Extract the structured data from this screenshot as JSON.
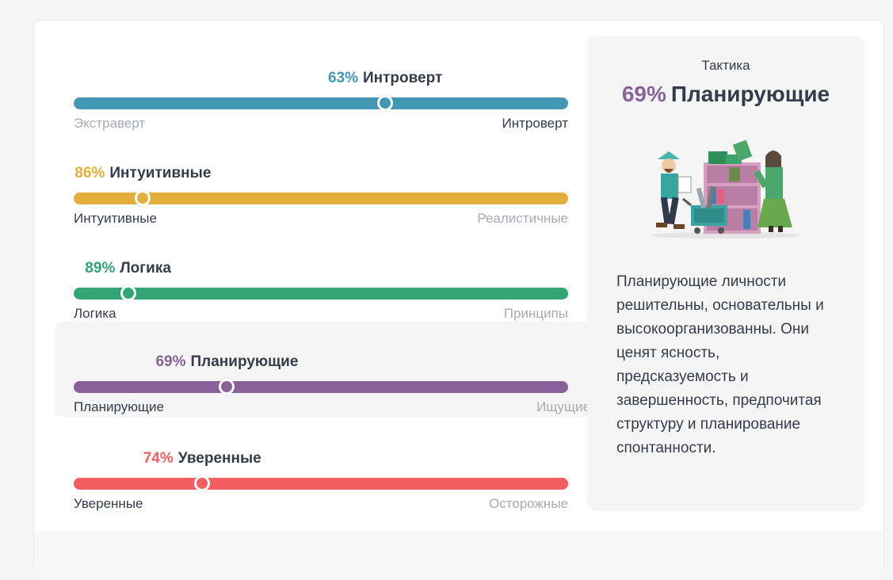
{
  "traits": [
    {
      "percent": "63%",
      "name": "Интроверт",
      "left_label": "Экстраверт",
      "right_label": "Интроверт",
      "value": 0.63,
      "selected_side": "right",
      "color": "#4298b4"
    },
    {
      "percent": "86%",
      "name": "Интуитивные",
      "left_label": "Интуитивные",
      "right_label": "Реалистичные",
      "value": 0.86,
      "selected_side": "left",
      "color": "#e4ae3a"
    },
    {
      "percent": "89%",
      "name": "Логика",
      "left_label": "Логика",
      "right_label": "Принципы",
      "value": 0.89,
      "selected_side": "left",
      "color": "#33a474"
    },
    {
      "percent": "69%",
      "name": "Планирующие",
      "left_label": "Планирующие",
      "right_label": "Ищущие",
      "value": 0.69,
      "selected_side": "left",
      "color": "#88619a",
      "active": true
    },
    {
      "percent": "74%",
      "name": "Уверенные",
      "left_label": "Уверенные",
      "right_label": "Осторожные",
      "value": 0.74,
      "selected_side": "left",
      "color": "#f25e62"
    }
  ],
  "panel": {
    "category": "Тактика",
    "percent": "69%",
    "title": "Планирующие",
    "description": "Планирующие личности решительны, основательны и высокоорганизованны. Они ценят ясность, предсказуемость и завершенность, предпочитая структуру и планирование спонтанности.",
    "illustration_icon": "planners-illustration"
  }
}
